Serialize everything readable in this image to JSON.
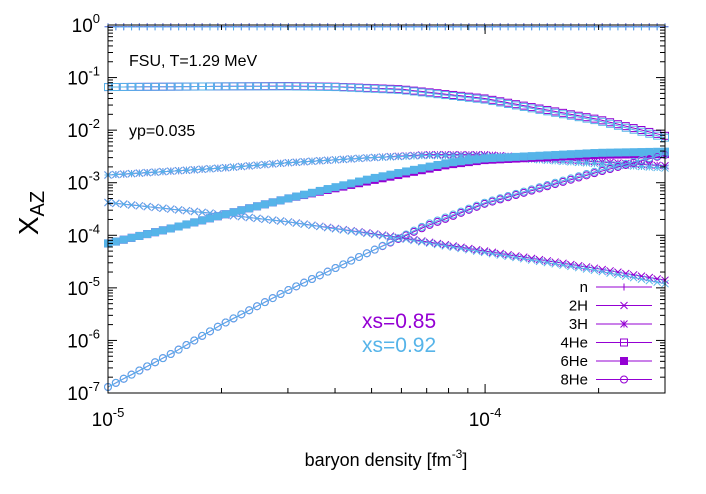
{
  "chart_data": {
    "type": "line",
    "xscale": "log",
    "yscale": "log",
    "xlim": [
      1e-05,
      0.0003
    ],
    "ylim": [
      1e-07,
      1
    ],
    "xlabel": "baryon density [fm",
    "xlabel_exponent": "-3",
    "xlabel_suffix": "]",
    "ylabel_main": "X",
    "ylabel_sub": "AZ",
    "x_ticks": [
      {
        "value": 1e-05,
        "base": "10",
        "exp": "-5"
      },
      {
        "value": 0.0001,
        "base": "10",
        "exp": "-4"
      }
    ],
    "y_ticks": [
      {
        "value": 1,
        "base": "10",
        "exp": "0"
      },
      {
        "value": 0.1,
        "base": "10",
        "exp": "-1"
      },
      {
        "value": 0.01,
        "base": "10",
        "exp": "-2"
      },
      {
        "value": 0.001,
        "base": "10",
        "exp": "-3"
      },
      {
        "value": 0.0001,
        "base": "10",
        "exp": "-4"
      },
      {
        "value": 1e-05,
        "base": "10",
        "exp": "-5"
      },
      {
        "value": 1e-06,
        "base": "10",
        "exp": "-6"
      },
      {
        "value": 1e-07,
        "base": "10",
        "exp": "-7"
      }
    ],
    "annotations": [
      "FSU, T=1.29 MeV",
      "yp=0.035"
    ],
    "legend_position": "bottom-right",
    "grid": false,
    "sets": [
      {
        "label": "xs=0.85",
        "color": "#9400D3"
      },
      {
        "label": "xs=0.92",
        "color": "#56B4E9"
      }
    ],
    "series": [
      {
        "name": "n",
        "marker": "plus",
        "x": [
          1e-05,
          3e-05,
          0.0001,
          0.0002,
          0.0003
        ],
        "y": [
          0.93,
          0.93,
          0.93,
          0.93,
          0.93
        ],
        "y_set2": [
          0.92,
          0.92,
          0.92,
          0.92,
          0.92
        ]
      },
      {
        "name": "2H",
        "marker": "cross",
        "x": [
          1e-05,
          2e-05,
          3e-05,
          4e-05,
          6e-05,
          0.0001,
          0.0002,
          0.0003
        ],
        "y": [
          0.00042,
          0.00025,
          0.00018,
          0.000135,
          9e-05,
          5e-05,
          2.3e-05,
          1.4e-05
        ],
        "y_set2": [
          0.00042,
          0.00025,
          0.00018,
          0.000133,
          8.7e-05,
          4.7e-05,
          2.1e-05,
          1.2e-05
        ]
      },
      {
        "name": "3H",
        "marker": "star",
        "x": [
          1e-05,
          2e-05,
          3e-05,
          5e-05,
          7e-05,
          0.0001,
          0.0002,
          0.0003
        ],
        "y": [
          0.0014,
          0.0019,
          0.0024,
          0.003,
          0.0034,
          0.0034,
          0.0025,
          0.0021
        ],
        "y_set2": [
          0.0014,
          0.0019,
          0.0024,
          0.003,
          0.0033,
          0.0032,
          0.0023,
          0.0019
        ]
      },
      {
        "name": "4He",
        "marker": "open-square",
        "x": [
          1e-05,
          2e-05,
          3e-05,
          4e-05,
          6e-05,
          0.0001,
          0.0002,
          0.0003
        ],
        "y": [
          0.066,
          0.068,
          0.069,
          0.067,
          0.06,
          0.04,
          0.016,
          0.0078
        ],
        "y_set2": [
          0.066,
          0.068,
          0.068,
          0.066,
          0.058,
          0.038,
          0.015,
          0.0072
        ]
      },
      {
        "name": "6He",
        "marker": "filled-square",
        "x": [
          1e-05,
          1.5e-05,
          2e-05,
          3e-05,
          5e-05,
          8e-05,
          0.0001,
          0.0002,
          0.0003
        ],
        "y": [
          7e-05,
          0.00014,
          0.00024,
          0.0005,
          0.0011,
          0.0022,
          0.0027,
          0.0034,
          0.0035
        ],
        "y_set2": [
          7e-05,
          0.00014,
          0.00024,
          0.0005,
          0.0012,
          0.0024,
          0.0029,
          0.0037,
          0.0039
        ]
      },
      {
        "name": "8He",
        "marker": "open-circle",
        "x": [
          1e-05,
          1.5e-05,
          2e-05,
          3e-05,
          5e-05,
          7e-05,
          0.0001,
          0.0002,
          0.0003
        ],
        "y": [
          1.3e-07,
          6e-07,
          2e-06,
          9e-06,
          5e-05,
          0.00015,
          0.0004,
          0.0016,
          0.0034
        ],
        "y_set2": [
          1.3e-07,
          6e-07,
          2e-06,
          9e-06,
          5e-05,
          0.00016,
          0.00042,
          0.0017,
          0.0035
        ]
      }
    ]
  }
}
